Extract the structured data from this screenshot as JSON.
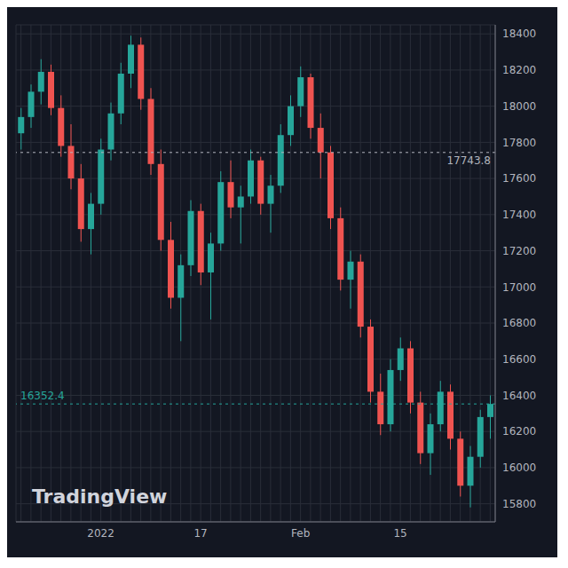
{
  "chart_data": {
    "type": "candlestick",
    "watermark": "TradingView",
    "categories": [
      null,
      null,
      null,
      null,
      null,
      null,
      null,
      null,
      "2022",
      null,
      null,
      null,
      null,
      null,
      null,
      null,
      null,
      null,
      "17",
      null,
      null,
      null,
      null,
      null,
      null,
      null,
      null,
      null,
      "Feb",
      null,
      null,
      null,
      null,
      null,
      null,
      null,
      null,
      null,
      "15",
      null,
      null,
      null,
      null,
      null,
      null,
      null,
      null,
      null
    ],
    "open": [
      17850,
      17940,
      18080,
      18190,
      17990,
      17780,
      17600,
      17320,
      17460,
      17760,
      17960,
      18180,
      18340,
      18040,
      17680,
      17260,
      16940,
      17120,
      17420,
      17080,
      17240,
      17580,
      17440,
      17500,
      17700,
      17460,
      17560,
      17840,
      18000,
      18160,
      17880,
      17744,
      17380,
      17040,
      17140,
      16780,
      16420,
      16240,
      16540,
      16660,
      16360,
      16080,
      16240,
      16420,
      16160,
      15900,
      16060,
      16280
    ],
    "high": [
      17990,
      18120,
      18260,
      18230,
      18060,
      17900,
      17680,
      17520,
      17820,
      18020,
      18240,
      18390,
      18380,
      18100,
      17760,
      17360,
      17180,
      17480,
      17460,
      17300,
      17640,
      17700,
      17560,
      17760,
      17720,
      17620,
      17900,
      18060,
      18220,
      18180,
      17960,
      17780,
      17440,
      17200,
      17180,
      16820,
      16520,
      16600,
      16720,
      16700,
      16420,
      16300,
      16480,
      16460,
      16200,
      16120,
      16320,
      16400
    ],
    "low": [
      17760,
      17880,
      18010,
      17950,
      17720,
      17540,
      17250,
      17180,
      17400,
      17700,
      17900,
      18100,
      17980,
      17620,
      17200,
      16880,
      16700,
      17060,
      17010,
      16820,
      17200,
      17380,
      17240,
      17460,
      17400,
      17300,
      17520,
      17780,
      17940,
      17820,
      17600,
      17320,
      16980,
      16880,
      16720,
      16360,
      16180,
      16200,
      16480,
      16300,
      16020,
      15960,
      16200,
      16100,
      15840,
      15780,
      16000,
      16160
    ],
    "close": [
      17940,
      18080,
      18190,
      17990,
      17780,
      17600,
      17320,
      17460,
      17760,
      17960,
      18180,
      18340,
      18040,
      17680,
      17260,
      16940,
      17120,
      17420,
      17080,
      17240,
      17580,
      17440,
      17500,
      17700,
      17460,
      17560,
      17840,
      18000,
      18160,
      17880,
      17744,
      17380,
      17040,
      17140,
      16780,
      16420,
      16240,
      16540,
      16660,
      16360,
      16080,
      16240,
      16420,
      16160,
      15900,
      16060,
      16280,
      16352.4
    ],
    "colors": {
      "up": "#26a69a",
      "down": "#ef5350"
    },
    "price_labels": [
      {
        "value": 17743.8,
        "label": "17743.8",
        "color": "#b2b5be"
      },
      {
        "value": 16352.4,
        "label": "16352.4",
        "color": "#26a69a"
      }
    ],
    "ylim": [
      15700,
      18450
    ],
    "yticks": [
      15800,
      16000,
      16200,
      16400,
      16600,
      16800,
      17000,
      17200,
      17400,
      17600,
      17800,
      18000,
      18200,
      18400
    ],
    "grid": true
  }
}
